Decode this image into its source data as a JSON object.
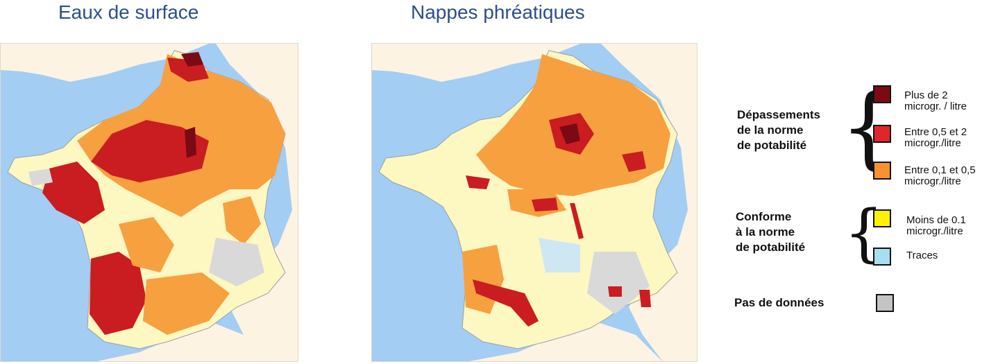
{
  "titles": {
    "surface": "Eaux de surface",
    "ground": "Nappes phréatiques"
  },
  "legend": {
    "exceed_group": [
      "Dépassements",
      "de la norme",
      "de potabilité"
    ],
    "conform_group": [
      "Conforme",
      "à la norme",
      "de potabilité"
    ],
    "no_data": "Pas de données",
    "items": [
      {
        "label_lines": [
          "Plus de 2",
          "microgr. / litre"
        ],
        "color": "#7a0a14"
      },
      {
        "label_lines": [
          "Entre 0,5 et 2",
          "microgr./litre"
        ],
        "color": "#e0262a"
      },
      {
        "label_lines": [
          "Entre 0,1 et 0,5",
          "microgr./litre"
        ],
        "color": "#f7922f"
      },
      {
        "label_lines": [
          "Moins de 0.1",
          "microgr./litre"
        ],
        "color": "#fff200"
      },
      {
        "label_lines": [
          "Traces"
        ],
        "color": "#a8dff0"
      },
      {
        "label_lines": [],
        "color": "#c4c4c4"
      }
    ]
  },
  "colors": {
    "sea": "#a3cdf3",
    "land_outside": "#fdf3e3",
    "france_base": "#fdf7c2",
    "orange": "#f7a040",
    "red": "#c91d22",
    "darkred": "#7a0a14",
    "grey": "#d9d9d9",
    "lightblue": "#cfe6f3",
    "border": "#9aa0a6"
  }
}
